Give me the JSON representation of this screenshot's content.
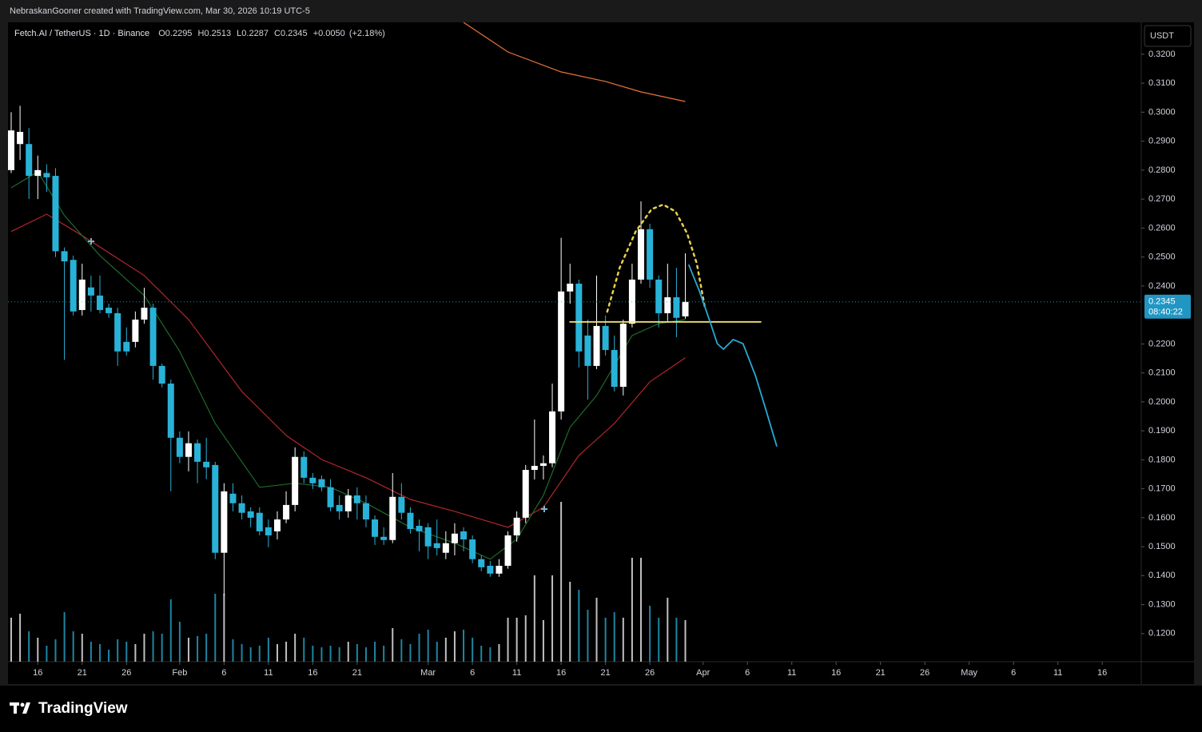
{
  "page": {
    "credit": "NebraskanGooner created with TradingView.com, Mar 30, 2026 10:19 UTC-5",
    "brand": "TradingView",
    "currency": "USDT"
  },
  "chart_data": {
    "type": "candlestick",
    "symbol": "Fetch.AI / TetherUS · 1D · Binance",
    "ohlc_letters": [
      "O",
      "H",
      "L",
      "C"
    ],
    "change": "+0.0050",
    "change_pct": "(+2.18%)",
    "countdown": "08:40:22",
    "up_color": "#ffffff",
    "down_color": "#29b2d8",
    "x": [
      0,
      1,
      2,
      3,
      4,
      5,
      6,
      7,
      8,
      9,
      10,
      11,
      12,
      13,
      14,
      15,
      16,
      17,
      18,
      19,
      20,
      21,
      22,
      23,
      24,
      25,
      26,
      27,
      28,
      29,
      30,
      31,
      32,
      33,
      34,
      35,
      36,
      37,
      38,
      39,
      40,
      41,
      42,
      43,
      44,
      45,
      46,
      47,
      48,
      49,
      50,
      51,
      52,
      53,
      54,
      55,
      56,
      57,
      58,
      59,
      60,
      61,
      62,
      63,
      64,
      65,
      66,
      67,
      68,
      69,
      70,
      71,
      72,
      73,
      74,
      75,
      76
    ],
    "open": [
      0.28,
      0.289,
      0.289,
      0.278,
      0.279,
      0.278,
      0.252,
      0.249,
      0.2317,
      0.2395,
      0.2367,
      0.2325,
      0.2306,
      0.2207,
      0.2207,
      0.2284,
      0.2325,
      0.2124,
      0.2063,
      0.1876,
      0.181,
      0.1857,
      0.1793,
      0.1782,
      0.1479,
      0.1683,
      0.165,
      0.1622,
      0.1617,
      0.1567,
      0.1553,
      0.1594,
      0.1644,
      0.181,
      0.1738,
      0.1733,
      0.1705,
      0.1644,
      0.1622,
      0.1677,
      0.165,
      0.1594,
      0.1534,
      0.1523,
      0.1672,
      0.1617,
      0.1572,
      0.1567,
      0.1512,
      0.1479,
      0.1512,
      0.1553,
      0.1525,
      0.1457,
      0.1434,
      0.1407,
      0.1434,
      0.1539,
      0.16,
      0.1765,
      0.1779,
      0.1788,
      0.1967,
      0.2381,
      0.2408,
      0.2229,
      0.2124,
      0.2262,
      0.2179,
      0.2052,
      0.227,
      0.2422,
      0.2596,
      0.2422,
      0.2306,
      0.2361,
      0.2295
    ],
    "high": [
      0.3,
      0.3022,
      0.2945,
      0.285,
      0.282,
      0.2807,
      0.2533,
      0.2505,
      0.2477,
      0.2436,
      0.2436,
      0.2339,
      0.2325,
      0.2257,
      0.2312,
      0.2394,
      0.2339,
      0.2132,
      0.2077,
      0.1898,
      0.1898,
      0.187,
      0.1876,
      0.1793,
      0.1719,
      0.1719,
      0.1677,
      0.1636,
      0.1636,
      0.1594,
      0.1622,
      0.1691,
      0.1843,
      0.1829,
      0.1754,
      0.1746,
      0.1733,
      0.1677,
      0.1699,
      0.1705,
      0.1677,
      0.1608,
      0.1567,
      0.1754,
      0.1719,
      0.1636,
      0.1594,
      0.1581,
      0.1594,
      0.1553,
      0.1581,
      0.1567,
      0.1539,
      0.147,
      0.1451,
      0.1457,
      0.1553,
      0.1622,
      0.1782,
      0.1939,
      0.1815,
      0.2063,
      0.2566,
      0.2477,
      0.2422,
      0.2284,
      0.2436,
      0.2298,
      0.2229,
      0.2284,
      0.2477,
      0.2692,
      0.2615,
      0.2436,
      0.2477,
      0.2463,
      0.2513
    ],
    "low": [
      0.279,
      0.2835,
      0.27,
      0.27,
      0.2725,
      0.25,
      0.2145,
      0.2298,
      0.2298,
      0.2312,
      0.2306,
      0.229,
      0.2124,
      0.216,
      0.2188,
      0.227,
      0.2077,
      0.205,
      0.1691,
      0.1788,
      0.176,
      0.1719,
      0.1733,
      0.1457,
      0.1332,
      0.1622,
      0.1594,
      0.1567,
      0.1539,
      0.1498,
      0.1525,
      0.1581,
      0.1622,
      0.1719,
      0.1699,
      0.1691,
      0.1622,
      0.1594,
      0.16,
      0.1594,
      0.1567,
      0.1506,
      0.1506,
      0.1512,
      0.1594,
      0.1545,
      0.1484,
      0.1457,
      0.147,
      0.1457,
      0.147,
      0.1484,
      0.1443,
      0.1415,
      0.1396,
      0.1396,
      0.1424,
      0.1517,
      0.1581,
      0.1732,
      0.1732,
      0.1774,
      0.1939,
      0.2339,
      0.2119,
      0.2008,
      0.2113,
      0.216,
      0.2036,
      0.2022,
      0.2257,
      0.2408,
      0.2394,
      0.2257,
      0.2279,
      0.2223,
      0.2287
    ],
    "close": [
      0.2937,
      0.2932,
      0.278,
      0.28,
      0.2775,
      0.252,
      0.2485,
      0.2312,
      0.2422,
      0.2367,
      0.2317,
      0.2306,
      0.2174,
      0.2174,
      0.2284,
      0.2325,
      0.2124,
      0.2063,
      0.1876,
      0.181,
      0.1857,
      0.1793,
      0.1774,
      0.1479,
      0.1691,
      0.165,
      0.1617,
      0.16,
      0.1553,
      0.1539,
      0.1594,
      0.1644,
      0.181,
      0.1738,
      0.1719,
      0.1705,
      0.1636,
      0.1622,
      0.1677,
      0.165,
      0.1594,
      0.1534,
      0.1523,
      0.1672,
      0.1617,
      0.1561,
      0.1553,
      0.1501,
      0.1495,
      0.1512,
      0.1545,
      0.1525,
      0.1457,
      0.1429,
      0.1407,
      0.1434,
      0.1539,
      0.16,
      0.1765,
      0.1779,
      0.1788,
      0.1967,
      0.2381,
      0.2408,
      0.2174,
      0.2124,
      0.2262,
      0.2179,
      0.2052,
      0.227,
      0.2422,
      0.2596,
      0.2422,
      0.2306,
      0.2361,
      0.229,
      0.2345
    ],
    "volume": [
      55,
      60,
      38,
      30,
      20,
      28,
      62,
      38,
      35,
      25,
      22,
      15,
      28,
      25,
      22,
      35,
      38,
      35,
      78,
      50,
      30,
      32,
      35,
      85,
      85,
      28,
      22,
      18,
      20,
      30,
      22,
      25,
      35,
      30,
      20,
      18,
      20,
      18,
      25,
      22,
      18,
      25,
      20,
      42,
      28,
      22,
      35,
      40,
      25,
      30,
      38,
      40,
      30,
      20,
      18,
      22,
      55,
      55,
      58,
      108,
      52,
      108,
      200,
      100,
      90,
      65,
      80,
      55,
      62,
      55,
      130,
      130,
      70,
      55,
      80,
      55,
      52
    ],
    "overlays": [
      {
        "color": "#e8743b",
        "x": [
          51,
          56,
          62,
          67,
          71,
          76
        ],
        "values": [
          0.331,
          0.3208,
          0.3139,
          0.3106,
          0.307,
          0.3037
        ]
      },
      {
        "color": "#b3262b",
        "x": [
          0,
          4,
          8,
          15,
          20,
          26,
          31,
          35,
          40,
          45,
          50,
          56,
          60,
          64,
          68,
          72,
          76
        ],
        "values": [
          0.2588,
          0.2648,
          0.2574,
          0.2436,
          0.2284,
          0.2036,
          0.1884,
          0.1801,
          0.1738,
          0.1663,
          0.1622,
          0.1567,
          0.1636,
          0.1815,
          0.1925,
          0.2069,
          0.2152
        ]
      },
      {
        "color": "#1f6b2a",
        "x": [
          0,
          3,
          6,
          10,
          15,
          19,
          23,
          28,
          32,
          36,
          40,
          45,
          50,
          54,
          57,
          60,
          63,
          66,
          70,
          73,
          76
        ],
        "values": [
          0.2739,
          0.2794,
          0.2643,
          0.2505,
          0.2367,
          0.2174,
          0.1925,
          0.1705,
          0.1719,
          0.1705,
          0.165,
          0.1567,
          0.1512,
          0.1457,
          0.1526,
          0.1677,
          0.1912,
          0.2022,
          0.2229,
          0.227,
          0.2284
        ]
      }
    ],
    "drawings": [
      {
        "color": "#f2e27a",
        "style": "solid",
        "x": [
          63,
          84.5
        ],
        "values": [
          0.2276,
          0.2276
        ]
      },
      {
        "color": "#e8d14a",
        "style": "dotted",
        "x": [
          67.2,
          68.6,
          70.4,
          72.2,
          73.5,
          74.9,
          76.2,
          77.3,
          78.2
        ],
        "values": [
          0.2311,
          0.2463,
          0.2588,
          0.2665,
          0.2681,
          0.2657,
          0.2582,
          0.2477,
          0.2326
        ]
      },
      {
        "color": "#29a9d6",
        "style": "solid",
        "x": [
          76.4,
          77.6,
          78.7,
          79.6,
          80.3,
          81.4,
          82.5,
          83.9,
          85.0,
          86.3
        ],
        "values": [
          0.2472,
          0.2381,
          0.2284,
          0.2201,
          0.2182,
          0.2215,
          0.2201,
          0.2091,
          0.1981,
          0.1848
        ]
      }
    ],
    "xlim": [
      -0.36,
      127.4
    ],
    "ylim": [
      0.1103,
      0.331
    ],
    "xticks": [
      {
        "value": 3,
        "label": "16"
      },
      {
        "value": 8,
        "label": "21"
      },
      {
        "value": 13,
        "label": "26"
      },
      {
        "value": 19,
        "label": "Feb"
      },
      {
        "value": 24,
        "label": "6"
      },
      {
        "value": 29,
        "label": "11"
      },
      {
        "value": 34,
        "label": "16"
      },
      {
        "value": 39,
        "label": "21"
      },
      {
        "value": 47,
        "label": "Mar"
      },
      {
        "value": 52,
        "label": "6"
      },
      {
        "value": 57,
        "label": "11"
      },
      {
        "value": 62,
        "label": "16"
      },
      {
        "value": 67,
        "label": "21"
      },
      {
        "value": 72,
        "label": "26"
      },
      {
        "value": 78,
        "label": "Apr"
      },
      {
        "value": 83,
        "label": "6"
      },
      {
        "value": 88,
        "label": "11"
      },
      {
        "value": 93,
        "label": "16"
      },
      {
        "value": 98,
        "label": "21"
      },
      {
        "value": 103,
        "label": "26"
      },
      {
        "value": 108,
        "label": "May"
      },
      {
        "value": 113,
        "label": "6"
      },
      {
        "value": 118,
        "label": "11"
      },
      {
        "value": 123,
        "label": "16"
      }
    ],
    "yticks": [
      {
        "value": 0.32,
        "label": "0.3200"
      },
      {
        "value": 0.31,
        "label": "0.3100"
      },
      {
        "value": 0.3,
        "label": "0.3000"
      },
      {
        "value": 0.29,
        "label": "0.2900"
      },
      {
        "value": 0.28,
        "label": "0.2800"
      },
      {
        "value": 0.27,
        "label": "0.2700"
      },
      {
        "value": 0.26,
        "label": "0.2600"
      },
      {
        "value": 0.25,
        "label": "0.2500"
      },
      {
        "value": 0.24,
        "label": "0.2400"
      },
      {
        "value": 0.22,
        "label": "0.2200"
      },
      {
        "value": 0.21,
        "label": "0.2100"
      },
      {
        "value": 0.2,
        "label": "0.2000"
      },
      {
        "value": 0.19,
        "label": "0.1900"
      },
      {
        "value": 0.18,
        "label": "0.1800"
      },
      {
        "value": 0.17,
        "label": "0.1700"
      },
      {
        "value": 0.16,
        "label": "0.1600"
      },
      {
        "value": 0.15,
        "label": "0.1500"
      },
      {
        "value": 0.14,
        "label": "0.1400"
      },
      {
        "value": 0.13,
        "label": "0.1300"
      },
      {
        "value": 0.12,
        "label": "0.1200"
      }
    ],
    "grid": false
  }
}
